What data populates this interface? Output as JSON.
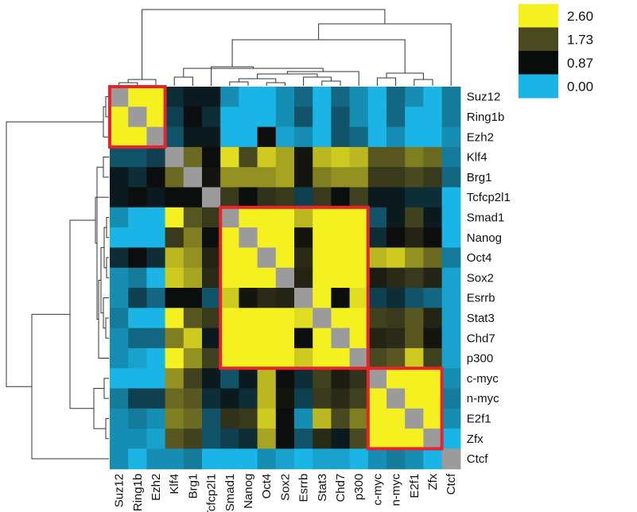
{
  "chart_data": {
    "type": "heatmap",
    "rows": [
      "Suz12",
      "Ring1b",
      "Ezh2",
      "Klf4",
      "Brg1",
      "Tcfcp2l1",
      "Smad1",
      "Nanog",
      "Oct4",
      "Sox2",
      "Esrrb",
      "Stat3",
      "Chd7",
      "p300",
      "c-myc",
      "n-myc",
      "E2f1",
      "Zfx",
      "Ctcf"
    ],
    "columns": [
      "Suz12",
      "Ring1b",
      "Ezh2",
      "Klf4",
      "Brg1",
      "Tcfcp2l1",
      "Smad1",
      "Nanog",
      "Oct4",
      "Sox2",
      "Esrrb",
      "Stat3",
      "Chd7",
      "p300",
      "c-myc",
      "n-myc",
      "E2f1",
      "Zfx",
      "Ctcf"
    ],
    "diagonal": "gray",
    "values": [
      [
        null,
        2.7,
        2.7,
        0.7,
        0.8,
        0.8,
        0.2,
        0.0,
        0.0,
        0.2,
        0.4,
        0.0,
        0.4,
        0.2,
        0.0,
        0.4,
        0.2,
        0.0,
        0.3
      ],
      [
        2.7,
        null,
        2.7,
        0.6,
        0.9,
        0.7,
        0.0,
        0.0,
        0.0,
        0.2,
        0.5,
        0.0,
        0.5,
        0.2,
        0.0,
        0.4,
        0.0,
        0.0,
        0.3
      ],
      [
        2.7,
        2.7,
        null,
        0.5,
        0.8,
        0.8,
        0.0,
        0.0,
        0.9,
        0.1,
        0.2,
        0.0,
        0.5,
        0.4,
        0.0,
        0.2,
        0.0,
        0.0,
        0.2
      ],
      [
        0.5,
        0.5,
        0.6,
        null,
        1.9,
        0.9,
        2.5,
        1.7,
        2.4,
        2.2,
        1.0,
        2.3,
        2.4,
        2.3,
        1.8,
        1.8,
        2.0,
        1.9,
        0.3
      ],
      [
        0.8,
        0.7,
        0.9,
        1.9,
        null,
        1.0,
        2.1,
        2.1,
        2.1,
        2.2,
        1.0,
        2.0,
        2.1,
        2.1,
        1.5,
        1.5,
        1.7,
        1.5,
        0.4
      ],
      [
        0.8,
        0.9,
        0.8,
        0.9,
        0.9,
        null,
        1.5,
        0.9,
        1.4,
        1.5,
        0.6,
        1.5,
        0.9,
        1.6,
        0.8,
        0.8,
        0.7,
        0.7,
        0.0
      ],
      [
        0.2,
        0.0,
        0.0,
        2.7,
        1.8,
        1.5,
        null,
        2.7,
        2.7,
        2.7,
        2.3,
        2.7,
        2.7,
        2.7,
        0.5,
        0.8,
        1.6,
        0.8,
        0.0
      ],
      [
        0.0,
        0.0,
        0.0,
        1.5,
        2.0,
        0.9,
        2.7,
        null,
        2.7,
        2.7,
        1.0,
        2.7,
        2.6,
        2.6,
        0.7,
        0.9,
        1.2,
        0.9,
        0.0
      ],
      [
        0.7,
        0.9,
        0.7,
        2.3,
        2.1,
        1.2,
        2.7,
        2.7,
        null,
        2.7,
        1.3,
        2.7,
        2.7,
        2.7,
        2.3,
        2.4,
        2.1,
        1.9,
        0.3
      ],
      [
        0.2,
        0.3,
        0.0,
        2.4,
        2.2,
        1.3,
        2.7,
        2.7,
        2.7,
        null,
        1.2,
        2.7,
        2.7,
        2.7,
        1.1,
        1.3,
        1.5,
        1.2,
        0.1
      ],
      [
        0.2,
        0.6,
        0.4,
        0.9,
        0.9,
        0.5,
        2.4,
        1.0,
        1.3,
        1.2,
        null,
        2.6,
        0.9,
        2.5,
        0.6,
        0.7,
        0.5,
        0.4,
        0.1
      ],
      [
        0.3,
        0.0,
        0.0,
        2.6,
        1.8,
        1.5,
        2.7,
        2.7,
        2.7,
        2.7,
        2.5,
        null,
        2.7,
        2.7,
        1.6,
        1.5,
        1.8,
        1.2,
        0.1
      ],
      [
        0.2,
        0.4,
        0.4,
        2.0,
        2.4,
        0.8,
        2.7,
        2.6,
        2.6,
        2.7,
        0.9,
        2.7,
        null,
        2.7,
        1.2,
        1.3,
        1.8,
        1.0,
        0.1
      ],
      [
        0.2,
        0.1,
        0.0,
        2.7,
        2.1,
        1.6,
        2.7,
        2.6,
        2.7,
        2.7,
        2.4,
        2.7,
        2.7,
        null,
        1.7,
        1.8,
        2.4,
        1.6,
        0.1
      ],
      [
        0.0,
        0.0,
        0.0,
        2.1,
        1.6,
        0.8,
        0.5,
        0.8,
        2.3,
        0.9,
        0.7,
        1.6,
        1.1,
        1.4,
        null,
        2.7,
        2.7,
        2.7,
        0.2
      ],
      [
        0.3,
        0.6,
        0.6,
        1.9,
        1.8,
        0.7,
        0.8,
        0.7,
        2.3,
        1.0,
        0.6,
        1.5,
        1.3,
        1.6,
        2.7,
        null,
        2.7,
        2.7,
        0.3
      ],
      [
        0.2,
        0.3,
        0.2,
        2.0,
        1.9,
        0.5,
        1.4,
        1.5,
        2.4,
        0.9,
        0.2,
        2.3,
        1.7,
        2.0,
        2.7,
        2.7,
        null,
        2.7,
        0.2
      ],
      [
        0.2,
        0.2,
        0.1,
        1.8,
        1.6,
        0.5,
        0.6,
        0.7,
        2.2,
        0.9,
        0.5,
        1.3,
        0.8,
        1.7,
        2.7,
        2.7,
        2.7,
        null,
        0.0
      ],
      [
        0.2,
        0.0,
        0.2,
        0.2,
        0.3,
        0.0,
        0.0,
        0.0,
        0.2,
        0.1,
        0.0,
        0.1,
        0.1,
        0.0,
        0.2,
        0.3,
        0.2,
        0.0,
        null
      ]
    ],
    "color_scale": {
      "stops": [
        0.0,
        0.87,
        1.73,
        2.6
      ],
      "colors": [
        "#1ab5e6",
        "#0a0c0c",
        "#4a4a22",
        "#f5f020"
      ],
      "labels": [
        "2.60",
        "1.73",
        "0.87",
        "0.00"
      ]
    },
    "highlight_blocks": [
      {
        "start": "Suz12",
        "end": "Ezh2"
      },
      {
        "start": "Smad1",
        "end": "p300"
      },
      {
        "start": "c-myc",
        "end": "Zfx"
      }
    ],
    "highlight_color": "#e8232b",
    "dendrograms": [
      "top",
      "left"
    ]
  }
}
